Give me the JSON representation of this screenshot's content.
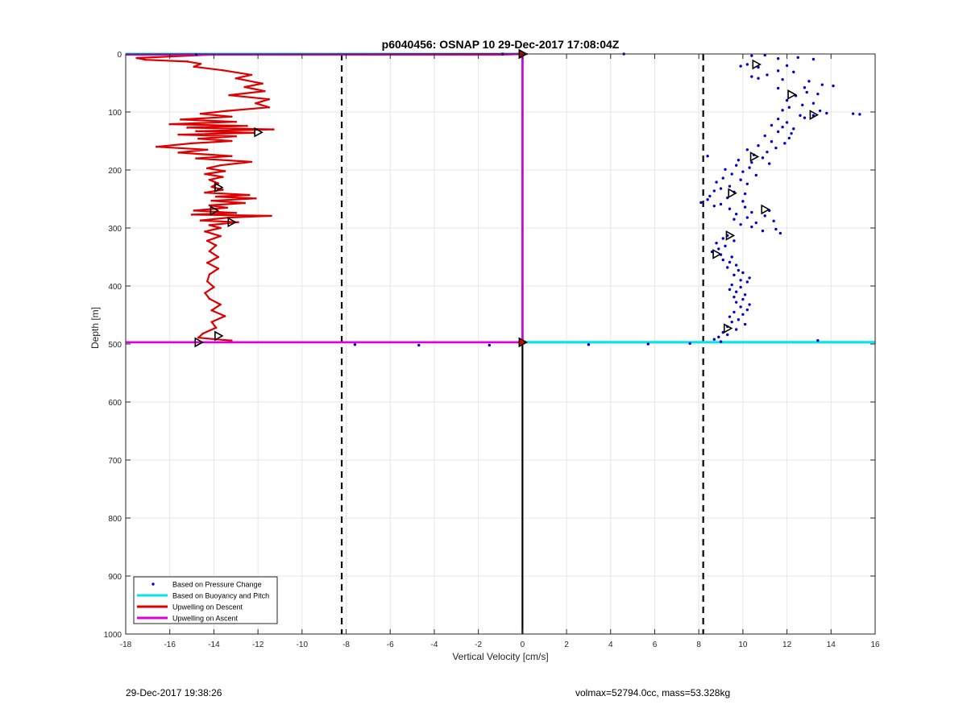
{
  "footer": {
    "timestamp": "29-Dec-2017 19:38:26",
    "params": "volmax=52794.0cc, mass=53.328kg"
  },
  "chart_data": {
    "type": "scatter",
    "title": "p6040456: OSNAP 10 29-Dec-2017 17:08:04Z",
    "xlabel": "Vertical Velocity [cm/s]",
    "ylabel": "Depth [m]",
    "xlim": [
      -18,
      16
    ],
    "ylim": [
      0,
      1000
    ],
    "y_reversed": true,
    "grid": true,
    "xticks": [
      -18,
      -16,
      -14,
      -12,
      -10,
      -8,
      -6,
      -4,
      -2,
      0,
      2,
      4,
      6,
      8,
      10,
      12,
      14,
      16
    ],
    "yticks": [
      0,
      100,
      200,
      300,
      400,
      500,
      600,
      700,
      800,
      900,
      1000
    ],
    "legend_position": "bottom-left",
    "colors": {
      "pressure": "#0000cc",
      "buoyancy": "#00e5ee",
      "descent": "#dd0000",
      "ascent": "#dd00dd",
      "reference": "#000000"
    },
    "series": [
      {
        "name": "Based on Pressure Change",
        "style": "dots",
        "points": [
          [
            4.6,
            0
          ],
          [
            -14.8,
            1
          ],
          [
            -0.9,
            0
          ],
          [
            10.4,
            3
          ],
          [
            11.0,
            2
          ],
          [
            11.6,
            8
          ],
          [
            12.5,
            6
          ],
          [
            13.2,
            9
          ],
          [
            10.2,
            18
          ],
          [
            10.7,
            23
          ],
          [
            9.9,
            21
          ],
          [
            12.0,
            20
          ],
          [
            11.6,
            29
          ],
          [
            12.3,
            31
          ],
          [
            11.1,
            36
          ],
          [
            10.4,
            39
          ],
          [
            10.7,
            42
          ],
          [
            11.8,
            44
          ],
          [
            13.0,
            47
          ],
          [
            13.6,
            53
          ],
          [
            14.1,
            55
          ],
          [
            12.8,
            58
          ],
          [
            11.6,
            59
          ],
          [
            12.9,
            66
          ],
          [
            13.4,
            69
          ],
          [
            12.4,
            72
          ],
          [
            12.0,
            80
          ],
          [
            13.2,
            85
          ],
          [
            12.7,
            88
          ],
          [
            12.1,
            92
          ],
          [
            11.8,
            97
          ],
          [
            13.5,
            98
          ],
          [
            13.8,
            102
          ],
          [
            15.0,
            103
          ],
          [
            15.3,
            104
          ],
          [
            12.6,
            106
          ],
          [
            13.2,
            106
          ],
          [
            12.8,
            110
          ],
          [
            11.6,
            112
          ],
          [
            12.0,
            118
          ],
          [
            11.3,
            123
          ],
          [
            11.8,
            126
          ],
          [
            12.3,
            129
          ],
          [
            11.6,
            134
          ],
          [
            12.2,
            137
          ],
          [
            11.0,
            141
          ],
          [
            12.1,
            145
          ],
          [
            11.3,
            151
          ],
          [
            11.9,
            154
          ],
          [
            10.7,
            158
          ],
          [
            11.5,
            162
          ],
          [
            10.2,
            165
          ],
          [
            11.1,
            169
          ],
          [
            10.5,
            174
          ],
          [
            8.4,
            176
          ],
          [
            10.9,
            179
          ],
          [
            9.8,
            183
          ],
          [
            10.4,
            187
          ],
          [
            11.2,
            189
          ],
          [
            9.7,
            192
          ],
          [
            10.3,
            196
          ],
          [
            9.2,
            199
          ],
          [
            10.0,
            203
          ],
          [
            9.5,
            207
          ],
          [
            10.6,
            209
          ],
          [
            9.1,
            214
          ],
          [
            9.9,
            217
          ],
          [
            8.8,
            221
          ],
          [
            10.2,
            224
          ],
          [
            9.4,
            228
          ],
          [
            9.0,
            232
          ],
          [
            8.7,
            236
          ],
          [
            9.6,
            238
          ],
          [
            10.1,
            241
          ],
          [
            8.5,
            245
          ],
          [
            9.3,
            248
          ],
          [
            8.4,
            251
          ],
          [
            10.0,
            254
          ],
          [
            8.1,
            256
          ],
          [
            9.0,
            259
          ],
          [
            8.7,
            262
          ],
          [
            10.1,
            264
          ],
          [
            9.4,
            267
          ],
          [
            11.2,
            270
          ],
          [
            10.4,
            273
          ],
          [
            9.7,
            276
          ],
          [
            11.0,
            279
          ],
          [
            10.2,
            282
          ],
          [
            9.6,
            285
          ],
          [
            11.4,
            288
          ],
          [
            10.6,
            291
          ],
          [
            9.9,
            294
          ],
          [
            10.4,
            298
          ],
          [
            11.5,
            302
          ],
          [
            10.9,
            305
          ],
          [
            11.7,
            309
          ],
          [
            9.3,
            313
          ],
          [
            9.1,
            318
          ],
          [
            9.6,
            322
          ],
          [
            8.8,
            326
          ],
          [
            9.2,
            331
          ],
          [
            8.9,
            336
          ],
          [
            8.6,
            341
          ],
          [
            9.0,
            346
          ],
          [
            9.5,
            350
          ],
          [
            9.1,
            355
          ],
          [
            9.4,
            359
          ],
          [
            9.7,
            364
          ],
          [
            9.3,
            368
          ],
          [
            9.8,
            373
          ],
          [
            10.0,
            377
          ],
          [
            9.6,
            381
          ],
          [
            10.3,
            386
          ],
          [
            9.9,
            390
          ],
          [
            10.2,
            393
          ],
          [
            9.5,
            398
          ],
          [
            9.9,
            402
          ],
          [
            9.4,
            406
          ],
          [
            9.7,
            410
          ],
          [
            10.1,
            415
          ],
          [
            9.6,
            419
          ],
          [
            10.0,
            423
          ],
          [
            9.7,
            428
          ],
          [
            10.3,
            432
          ],
          [
            9.9,
            436
          ],
          [
            10.2,
            441
          ],
          [
            9.6,
            445
          ],
          [
            10.0,
            449
          ],
          [
            9.4,
            453
          ],
          [
            9.8,
            458
          ],
          [
            9.5,
            462
          ],
          [
            10.1,
            466
          ],
          [
            9.3,
            470
          ],
          [
            9.7,
            475
          ],
          [
            9.1,
            480
          ],
          [
            9.3,
            484
          ],
          [
            8.9,
            488
          ],
          [
            8.7,
            492
          ],
          [
            9.0,
            496
          ],
          [
            13.4,
            494
          ],
          [
            -7.6,
            501
          ],
          [
            -4.7,
            502
          ],
          [
            -1.5,
            502
          ],
          [
            3.0,
            501
          ],
          [
            5.7,
            500
          ],
          [
            7.6,
            499
          ]
        ]
      },
      {
        "name": "Based on Buoyancy and Pitch",
        "style": "line",
        "points": [
          [
            -18,
            0
          ],
          [
            0,
            0
          ],
          [
            0,
            497
          ],
          [
            16,
            497
          ]
        ]
      },
      {
        "name": "Upwelling on Descent",
        "style": "line",
        "points": [
          [
            0.2,
            0
          ],
          [
            -14,
            1
          ],
          [
            -17.5,
            7
          ],
          [
            -17.1,
            10
          ],
          [
            -15.2,
            13
          ],
          [
            -14.6,
            17
          ],
          [
            -14.9,
            22
          ],
          [
            -13.6,
            28
          ],
          [
            -12.3,
            36
          ],
          [
            -13.0,
            42
          ],
          [
            -11.8,
            51
          ],
          [
            -12.6,
            57
          ],
          [
            -11.7,
            64
          ],
          [
            -13.3,
            71
          ],
          [
            -11.5,
            78
          ],
          [
            -12.1,
            85
          ],
          [
            -11.5,
            92
          ],
          [
            -13.4,
            98
          ],
          [
            -14.6,
            103
          ],
          [
            -13.2,
            108
          ],
          [
            -15.5,
            113
          ],
          [
            -13.0,
            117
          ],
          [
            -16.0,
            121
          ],
          [
            -12.5,
            124
          ],
          [
            -15.2,
            127
          ],
          [
            -11.3,
            130
          ],
          [
            -14.8,
            133
          ],
          [
            -12.2,
            136
          ],
          [
            -15.6,
            139
          ],
          [
            -13.0,
            142
          ],
          [
            -14.7,
            146
          ],
          [
            -13.2,
            150
          ],
          [
            -15.0,
            154
          ],
          [
            -16.6,
            160
          ],
          [
            -14.3,
            165
          ],
          [
            -15.6,
            170
          ],
          [
            -13.2,
            176
          ],
          [
            -14.8,
            180
          ],
          [
            -12.3,
            186
          ],
          [
            -13.7,
            192
          ],
          [
            -14.3,
            197
          ],
          [
            -13.5,
            202
          ],
          [
            -14.4,
            207
          ],
          [
            -13.6,
            212
          ],
          [
            -14.2,
            217
          ],
          [
            -13.8,
            223
          ],
          [
            -14.1,
            229
          ],
          [
            -13.6,
            234
          ],
          [
            -14.4,
            239
          ],
          [
            -12.4,
            243
          ],
          [
            -13.9,
            246
          ],
          [
            -12.1,
            249
          ],
          [
            -14.1,
            253
          ],
          [
            -12.6,
            257
          ],
          [
            -14.2,
            261
          ],
          [
            -13.4,
            265
          ],
          [
            -14.9,
            270
          ],
          [
            -13.0,
            274
          ],
          [
            -15.0,
            277
          ],
          [
            -11.4,
            279
          ],
          [
            -13.3,
            282
          ],
          [
            -14.6,
            287
          ],
          [
            -12.9,
            290
          ],
          [
            -14.2,
            295
          ],
          [
            -13.7,
            300
          ],
          [
            -14.4,
            306
          ],
          [
            -13.7,
            314
          ],
          [
            -14.3,
            322
          ],
          [
            -13.9,
            330
          ],
          [
            -14.2,
            340
          ],
          [
            -13.8,
            350
          ],
          [
            -14.3,
            360
          ],
          [
            -13.8,
            370
          ],
          [
            -14.2,
            380
          ],
          [
            -14.3,
            392
          ],
          [
            -14.0,
            402
          ],
          [
            -14.4,
            412
          ],
          [
            -14.2,
            422
          ],
          [
            -13.7,
            432
          ],
          [
            -14.1,
            442
          ],
          [
            -13.5,
            452
          ],
          [
            -14.1,
            462
          ],
          [
            -13.9,
            472
          ],
          [
            -14.5,
            482
          ],
          [
            -14.7,
            489
          ],
          [
            -13.9,
            492
          ],
          [
            -13.2,
            494
          ]
        ]
      },
      {
        "name": "Upwelling on Ascent",
        "style": "line",
        "points": [
          [
            -18,
            1
          ],
          [
            -1,
            1
          ],
          [
            0,
            0
          ],
          [
            0,
            497
          ],
          [
            -18,
            497
          ]
        ]
      }
    ],
    "reference_lines": [
      {
        "style": "dashed",
        "x": -8.2
      },
      {
        "style": "dashed",
        "x": 8.2
      },
      {
        "style": "solid",
        "x": 0,
        "y_from": 497,
        "y_to": 1000
      }
    ],
    "markers": {
      "descent": [
        [
          -12.0,
          135
        ],
        [
          -13.8,
          230
        ],
        [
          -14.0,
          270
        ],
        [
          -13.2,
          290
        ],
        [
          -13.8,
          486
        ],
        [
          -14.7,
          497
        ]
      ],
      "pressure": [
        [
          10.6,
          18
        ],
        [
          12.2,
          70
        ],
        [
          13.2,
          105
        ],
        [
          10.5,
          177
        ],
        [
          9.5,
          240
        ],
        [
          11.0,
          268
        ],
        [
          9.4,
          313
        ],
        [
          8.8,
          345
        ],
        [
          9.3,
          473
        ]
      ],
      "ascent": [
        [
          0,
          0
        ],
        [
          0,
          497
        ]
      ]
    }
  }
}
